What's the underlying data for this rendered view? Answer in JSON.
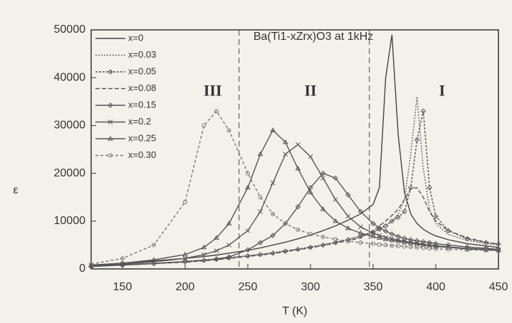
{
  "chart_data": {
    "type": "line",
    "annotation": "Ba(Ti1-xZrx)O3 at 1kHz",
    "x_label": "T (K)",
    "y_label": "ε",
    "regions": [
      {
        "text": "III",
        "x": 222,
        "y": 37000
      },
      {
        "text": "II",
        "x": 300,
        "y": 37000
      },
      {
        "text": "I",
        "x": 405,
        "y": 37000
      }
    ],
    "boundaries": [
      243,
      347
    ],
    "xlim": [
      125,
      450
    ],
    "xticks": [
      150,
      200,
      250,
      300,
      350,
      400,
      450
    ],
    "ylim": [
      0,
      50000
    ],
    "yticks": [
      0,
      10000,
      20000,
      30000,
      40000,
      50000
    ],
    "x": [
      125,
      150,
      175,
      200,
      215,
      225,
      235,
      250,
      260,
      270,
      280,
      290,
      300,
      310,
      320,
      330,
      340,
      350,
      355,
      360,
      365,
      370,
      375,
      380,
      385,
      390,
      395,
      400,
      410,
      425,
      440,
      450
    ],
    "series": [
      {
        "name": "x=0",
        "color": "#444",
        "dash": "none",
        "marker": "none",
        "values": [
          800,
          1200,
          1700,
          2200,
          2600,
          2900,
          3300,
          3900,
          4400,
          5000,
          5600,
          6300,
          7100,
          8000,
          9000,
          10200,
          11500,
          13500,
          17000,
          40000,
          49000,
          28000,
          16000,
          11500,
          9500,
          8300,
          7500,
          6900,
          6100,
          5300,
          4800,
          4500
        ]
      },
      {
        "name": "x=0.03",
        "color": "#666",
        "dash": "2 2",
        "marker": "none",
        "values": [
          600,
          900,
          1200,
          1600,
          1900,
          2100,
          2400,
          2800,
          3100,
          3400,
          3800,
          4200,
          4600,
          5100,
          5600,
          6200,
          6900,
          7800,
          8400,
          9100,
          10000,
          11500,
          14500,
          24000,
          36000,
          21000,
          12500,
          9500,
          7200,
          6000,
          5300,
          5000
        ]
      },
      {
        "name": "x=0.05",
        "color": "#555",
        "dash": "3 2",
        "marker": "diamond",
        "values": [
          550,
          850,
          1150,
          1500,
          1800,
          2000,
          2300,
          2700,
          3000,
          3300,
          3700,
          4100,
          4500,
          5000,
          5500,
          6100,
          6800,
          7700,
          8300,
          9000,
          10000,
          10800,
          12000,
          17000,
          27000,
          33000,
          17000,
          11000,
          8000,
          6300,
          5500,
          5200
        ]
      },
      {
        "name": "x=0.08",
        "color": "#555",
        "dash": "6 3",
        "marker": "none",
        "values": [
          500,
          800,
          1100,
          1400,
          1700,
          1900,
          2200,
          2600,
          2900,
          3200,
          3600,
          4000,
          4400,
          4900,
          5400,
          5900,
          6500,
          8000,
          9000,
          10000,
          11200,
          12500,
          14500,
          16800,
          17000,
          15000,
          12000,
          10000,
          8000,
          6500,
          5600,
          5200
        ]
      },
      {
        "name": "x=0.15",
        "color": "#555",
        "dash": "none",
        "marker": "diamond",
        "values": [
          500,
          800,
          1100,
          1500,
          1800,
          2100,
          2500,
          4000,
          5500,
          7000,
          9500,
          13000,
          17000,
          20000,
          19000,
          15500,
          12000,
          9500,
          8600,
          7900,
          7300,
          6800,
          6400,
          6100,
          5900,
          5700,
          5500,
          5300,
          5000,
          4600,
          4300,
          4100
        ]
      },
      {
        "name": "x=0.2",
        "color": "#555",
        "dash": "none",
        "marker": "cross",
        "values": [
          700,
          1000,
          1500,
          2200,
          3000,
          3800,
          5000,
          8000,
          12000,
          18000,
          24000,
          26000,
          23500,
          19000,
          14500,
          11000,
          8800,
          7500,
          7000,
          6600,
          6300,
          6000,
          5800,
          5600,
          5400,
          5200,
          5000,
          4900,
          4600,
          4300,
          4100,
          4000
        ]
      },
      {
        "name": "x=0.25",
        "color": "#555",
        "dash": "none",
        "marker": "triangle",
        "values": [
          800,
          1200,
          1900,
          3000,
          4500,
          6500,
          9500,
          17000,
          24000,
          29000,
          26500,
          21000,
          16000,
          12500,
          10000,
          8500,
          7500,
          6800,
          6500,
          6200,
          6000,
          5800,
          5600,
          5400,
          5200,
          5000,
          4900,
          4700,
          4500,
          4200,
          4000,
          3900
        ]
      },
      {
        "name": "x=0.30",
        "color": "#777",
        "dash": "4 3",
        "marker": "circle",
        "values": [
          1000,
          2200,
          5000,
          14000,
          30000,
          33000,
          29000,
          20000,
          15000,
          11500,
          9500,
          8200,
          7300,
          6700,
          6200,
          5800,
          5500,
          5300,
          5100,
          5000,
          4900,
          4800,
          4700,
          4600,
          4500,
          4400,
          4300,
          4200,
          4100,
          4000,
          3900,
          3800
        ]
      }
    ]
  }
}
